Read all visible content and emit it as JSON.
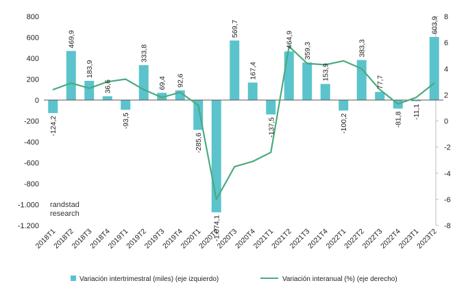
{
  "chart_data": {
    "type": "bar",
    "categories": [
      "2018T1",
      "2018T2",
      "2018T3",
      "2018T4",
      "2019T1",
      "2019T2",
      "2019T3",
      "2019T4",
      "2020T1",
      "2020T2",
      "2020T3",
      "2020T4",
      "2021T1",
      "2021T2",
      "2021T3",
      "2021T4",
      "2022T1",
      "2022T2",
      "2022T3",
      "2022T4",
      "2023T1",
      "2023T2"
    ],
    "series": [
      {
        "name": "Variación intertrimestral (miles) (eje izquierdo)",
        "type": "bar",
        "axis": "left",
        "color": "#5bc3cc",
        "values": [
          -124.2,
          469.9,
          183.9,
          36.6,
          -93.5,
          333.8,
          69.4,
          92.6,
          -285.6,
          -1074.1,
          569.7,
          167.4,
          -137.5,
          464.9,
          359.3,
          153.9,
          -100.2,
          383.3,
          77.7,
          -81.8,
          -11.1,
          603.9
        ],
        "labels": [
          "-124,2",
          "469,9",
          "183,9",
          "36,6",
          "-93,5",
          "333,8",
          "69,4",
          "92,6",
          "-285,6",
          "-1.074,1",
          "569,7",
          "167,4",
          "-137,5",
          "464,9",
          "359,3",
          "153,9",
          "-100,2",
          "383,3",
          "77,7",
          "-81,8",
          "-11,1",
          "603,9"
        ]
      },
      {
        "name": "Variación interanual (%) (eje derecho)",
        "type": "line",
        "axis": "right",
        "color": "#4aaa7e",
        "values": [
          2.4,
          2.9,
          2.5,
          3.0,
          3.2,
          2.4,
          1.8,
          2.2,
          1.2,
          -6.0,
          -3.5,
          -3.1,
          -2.4,
          5.7,
          4.4,
          4.3,
          4.6,
          4.0,
          2.4,
          1.3,
          1.8,
          2.9
        ]
      }
    ],
    "ylim_left": [
      -1200,
      800
    ],
    "yticks_left": [
      800,
      600,
      400,
      200,
      0,
      -200,
      -400,
      -600,
      -800,
      -1000,
      -1200
    ],
    "yticklabels_left": [
      "800",
      "600",
      "400",
      "200",
      "0",
      "-200",
      "-400",
      "-600",
      "-800",
      "-1.000",
      "-1.200"
    ],
    "ylim_right": [
      -8,
      8
    ],
    "yticks_right": [
      8,
      6,
      4,
      2,
      0,
      -2,
      -4,
      -6,
      -8
    ],
    "yticklabels_right": [
      "8",
      "6",
      "4",
      "2",
      "0",
      "-2",
      "-4",
      "-6",
      "-8"
    ],
    "grid": false,
    "legend_position": "bottom",
    "watermark": [
      "randstad",
      "research"
    ]
  }
}
